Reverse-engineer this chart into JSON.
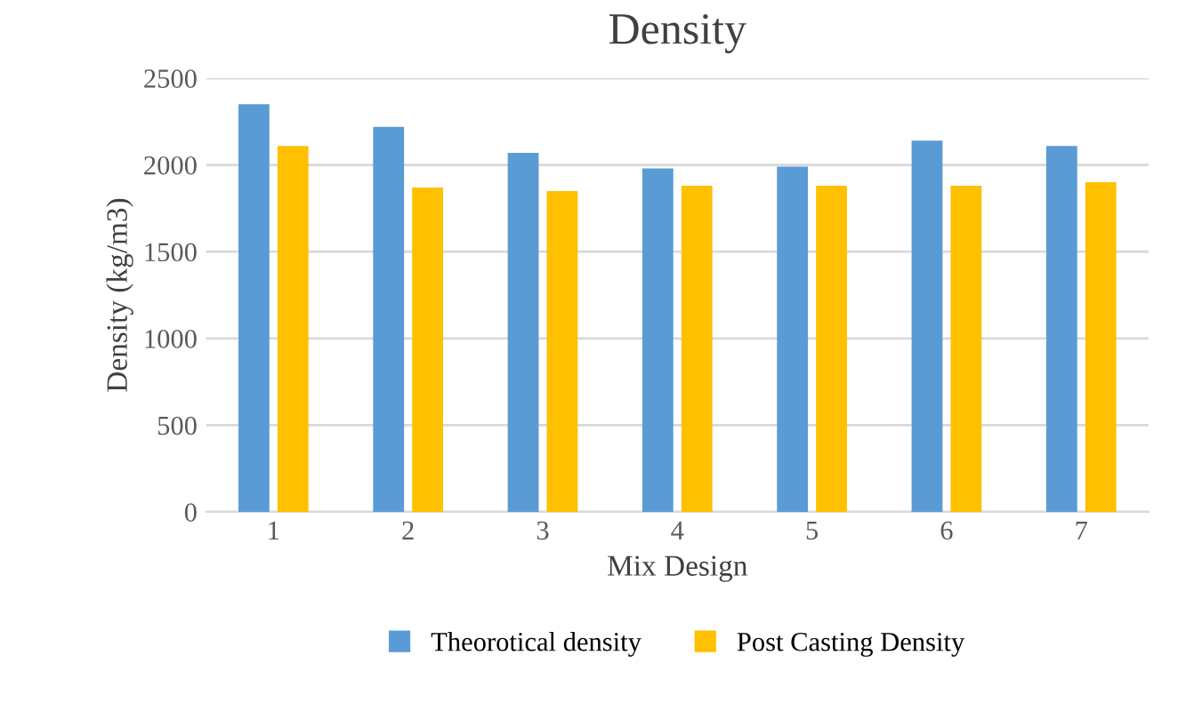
{
  "chart_data": {
    "type": "bar",
    "title": "Density",
    "xlabel": "Mix Design",
    "ylabel": "Density (kg/m3)",
    "categories": [
      "1",
      "2",
      "3",
      "4",
      "5",
      "6",
      "7"
    ],
    "series": [
      {
        "name": "Theorotical density",
        "color": "#5b9bd5",
        "values": [
          2350,
          2220,
          2070,
          1980,
          1990,
          2140,
          2110
        ]
      },
      {
        "name": "Post Casting Density",
        "color": "#ffc000",
        "values": [
          2110,
          1870,
          1850,
          1880,
          1880,
          1880,
          1900
        ]
      }
    ],
    "ylim": [
      0,
      2500
    ],
    "yticks": [
      0,
      500,
      1000,
      1500,
      2000,
      2500
    ],
    "grid": "y",
    "legend": "bottom"
  }
}
